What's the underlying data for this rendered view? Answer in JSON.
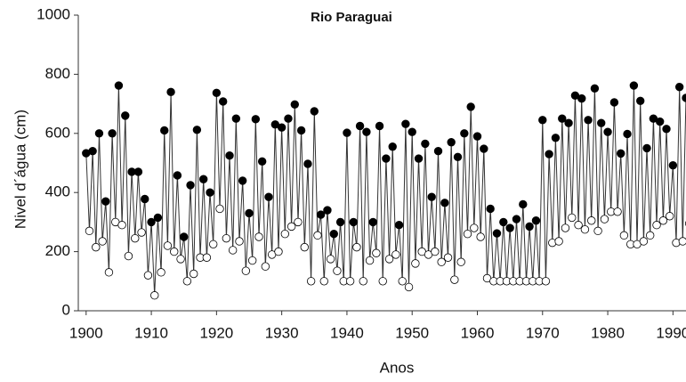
{
  "chart_data": {
    "type": "line",
    "title": "Rio Paraguai",
    "x_label": "Anos",
    "y_label": "Nivel d´água (cm)",
    "x": [
      1900,
      1901,
      1902,
      1903,
      1904,
      1905,
      1906,
      1907,
      1908,
      1909,
      1910,
      1911,
      1912,
      1913,
      1914,
      1915,
      1916,
      1917,
      1918,
      1919,
      1920,
      1921,
      1922,
      1923,
      1924,
      1925,
      1926,
      1927,
      1928,
      1929,
      1930,
      1931,
      1932,
      1933,
      1934,
      1935,
      1936,
      1937,
      1938,
      1939,
      1940,
      1941,
      1942,
      1943,
      1944,
      1945,
      1946,
      1947,
      1948,
      1949,
      1950,
      1951,
      1952,
      1953,
      1954,
      1955,
      1956,
      1957,
      1958,
      1959,
      1960,
      1961,
      1962,
      1963,
      1964,
      1965,
      1966,
      1967,
      1968,
      1969,
      1970,
      1971,
      1972,
      1973,
      1974,
      1975,
      1976,
      1977,
      1978,
      1979,
      1980,
      1981,
      1982,
      1983,
      1984,
      1985,
      1986,
      1987,
      1988,
      1989,
      1990,
      1991,
      1992
    ],
    "series": [
      {
        "color": "#000000",
        "values": [
          533,
          540,
          600,
          370,
          600,
          762,
          660,
          470,
          470,
          378,
          300,
          315,
          610,
          740,
          458,
          250,
          425,
          612,
          445,
          400,
          737,
          708,
          525,
          650,
          440,
          330,
          648,
          505,
          385,
          630,
          620,
          650,
          698,
          610,
          497,
          675,
          325,
          340,
          260,
          300,
          602,
          300,
          625,
          605,
          300,
          625,
          515,
          555,
          290,
          632,
          605,
          515,
          565,
          385,
          540,
          365,
          570,
          520,
          600,
          690,
          590,
          548,
          345,
          262,
          300,
          280,
          310,
          360,
          285,
          305,
          645,
          530,
          585,
          650,
          635,
          728,
          718,
          645,
          752,
          635,
          605,
          705,
          532,
          598,
          762,
          710,
          550,
          650,
          640,
          615,
          492,
          757,
          720
        ]
      },
      {
        "color": "#ffffff",
        "values": [
          270,
          215,
          235,
          130,
          300,
          290,
          185,
          245,
          265,
          120,
          52,
          130,
          220,
          200,
          175,
          100,
          125,
          180,
          180,
          225,
          345,
          245,
          205,
          235,
          135,
          170,
          250,
          150,
          190,
          200,
          260,
          285,
          300,
          215,
          100,
          255,
          100,
          175,
          135,
          100,
          100,
          215,
          100,
          170,
          195,
          100,
          175,
          190,
          100,
          80,
          160,
          200,
          190,
          200,
          165,
          180,
          105,
          165,
          260,
          280,
          250,
          110,
          100,
          100,
          100,
          100,
          100,
          100,
          100,
          100,
          100,
          230,
          235,
          280,
          315,
          290,
          275,
          305,
          270,
          310,
          335,
          335,
          255,
          225,
          225,
          235,
          255,
          290,
          305,
          320,
          230,
          235,
          295
        ]
      }
    ],
    "xlim": [
      1898.8,
      1992
    ],
    "ylim": [
      0,
      1000
    ],
    "xticks": [
      1900,
      1910,
      1920,
      1930,
      1940,
      1950,
      1960,
      1970,
      1980,
      1990
    ],
    "yticks": [
      0,
      200,
      400,
      600,
      800,
      1000
    ],
    "line_color": "#333333"
  }
}
